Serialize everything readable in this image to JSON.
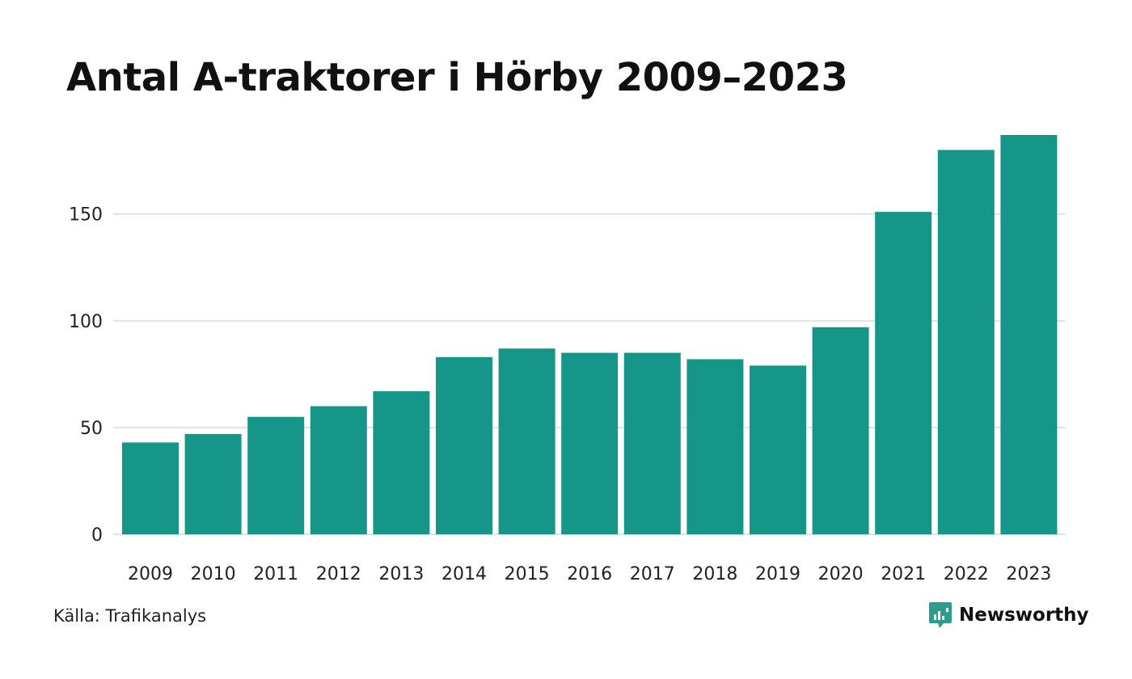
{
  "chart_data": {
    "type": "bar",
    "title": "Antal A-traktorer i Hörby 2009–2023",
    "categories": [
      "2009",
      "2010",
      "2011",
      "2012",
      "2013",
      "2014",
      "2015",
      "2016",
      "2017",
      "2018",
      "2019",
      "2020",
      "2021",
      "2022",
      "2023"
    ],
    "values": [
      43,
      47,
      55,
      60,
      67,
      83,
      87,
      85,
      85,
      82,
      79,
      97,
      151,
      180,
      187
    ],
    "xlabel": "",
    "ylabel": "",
    "ylim": [
      0,
      187
    ],
    "yticks": [
      0,
      50,
      100,
      150
    ],
    "grid": true,
    "bar_color": "#159688",
    "grid_color": "#e2e2e6"
  },
  "footer": {
    "source": "Källa: Trafikanalys",
    "brand": "Newsworthy",
    "brand_color": "#2a9d8f",
    "brand_icon": "newsworthy-logo-icon"
  }
}
